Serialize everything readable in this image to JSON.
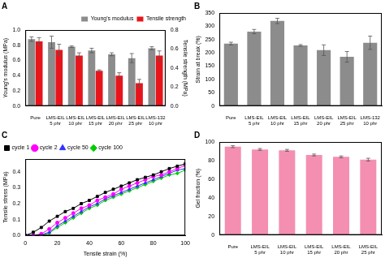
{
  "chart_data": [
    {
      "type": "bar",
      "title": "A",
      "categories": [
        "Pure",
        "LMS-EIL 5 phr",
        "LMS-EIL 10 phr",
        "LMS-EIL 15 phr",
        "LMS-EIL 20 phr",
        "LMS-EIL 25 phr",
        "LMS-132 10 phr"
      ],
      "series": [
        {
          "name": "Young's modulus",
          "color": "#8c8c8c",
          "values": [
            0.88,
            0.84,
            0.78,
            0.73,
            0.68,
            0.63,
            0.76
          ],
          "errors": [
            0.03,
            0.08,
            0.01,
            0.03,
            0.02,
            0.06,
            0.02
          ]
        },
        {
          "name": "Tensile strength",
          "color": "#e8141b",
          "axis": "y2",
          "values": [
            0.68,
            0.59,
            0.53,
            0.37,
            0.32,
            0.24,
            0.53
          ],
          "errors": [
            0.04,
            0.06,
            0.03,
            0.01,
            0.03,
            0.04,
            0.05
          ]
        }
      ],
      "y_label": "Young's modulus (MPa)",
      "y2_label": "Tensile strength (MPa)",
      "ylim": [
        0,
        1.0
      ],
      "yticks": [
        {
          "value": 0,
          "label": "0.0"
        },
        0.2,
        0.4,
        0.6,
        0.8,
        {
          "value": 1.0,
          "label": "1.0"
        }
      ],
      "y2lim": [
        0,
        0.8
      ],
      "y2ticks": [
        {
          "value": 0,
          "label": "0.0"
        },
        0.2,
        0.4,
        0.6,
        0.8
      ],
      "legend": "top right",
      "grid": false
    },
    {
      "type": "bar",
      "title": "B",
      "categories": [
        "Pure",
        "LMS-EIL 5 phr",
        "LMS-EIL 10 phr",
        "LMS-EIL 15 phr",
        "LMS-EIL 20 phr",
        "LMS-EIL 25 phr",
        "LMS-132 10 phr"
      ],
      "values": [
        235,
        280,
        320,
        228,
        210,
        185,
        238
      ],
      "errors": [
        5,
        8,
        10,
        3,
        20,
        20,
        25
      ],
      "color": "#8c8c8c",
      "y_label": "Strain at break (%)",
      "ylim": [
        0,
        350
      ],
      "yticks": [
        0,
        50,
        100,
        150,
        200,
        250,
        300,
        350
      ],
      "grid": false
    },
    {
      "type": "line",
      "title": "C",
      "x": [
        0,
        5,
        10,
        15,
        20,
        25,
        30,
        35,
        40,
        45,
        50,
        55,
        60,
        65,
        70,
        75,
        80,
        85,
        90,
        95,
        100
      ],
      "series": [
        {
          "name": "cycle 1",
          "color": "#000000",
          "marker": "square",
          "values": [
            0,
            0.02,
            0.05,
            0.09,
            0.12,
            0.15,
            0.17,
            0.2,
            0.22,
            0.245,
            0.27,
            0.29,
            0.31,
            0.33,
            0.35,
            0.365,
            0.38,
            0.4,
            0.42,
            0.435,
            0.45
          ]
        },
        {
          "name": "cycle 2",
          "color": "#ff00ff",
          "marker": "circle",
          "values": [
            0,
            0,
            0.01,
            0.04,
            0.08,
            0.11,
            0.14,
            0.17,
            0.19,
            0.22,
            0.24,
            0.26,
            0.29,
            0.31,
            0.33,
            0.35,
            0.37,
            0.38,
            0.4,
            0.42,
            0.44
          ]
        },
        {
          "name": "cycle 50",
          "color": "#3333ff",
          "marker": "triangle",
          "values": [
            0,
            0,
            0.005,
            0.02,
            0.06,
            0.09,
            0.12,
            0.15,
            0.18,
            0.2,
            0.23,
            0.25,
            0.27,
            0.29,
            0.31,
            0.33,
            0.35,
            0.37,
            0.39,
            0.41,
            0.42
          ]
        },
        {
          "name": "cycle 100",
          "color": "#00cc00",
          "marker": "diamond",
          "values": [
            0,
            0,
            0,
            0.015,
            0.05,
            0.08,
            0.11,
            0.14,
            0.17,
            0.19,
            0.22,
            0.24,
            0.26,
            0.28,
            0.3,
            0.32,
            0.34,
            0.36,
            0.38,
            0.39,
            0.41
          ]
        }
      ],
      "x_label": "Tensile strain (%)",
      "y_label": "Tensile stress (MPa)",
      "xlim": [
        0,
        100
      ],
      "xticks": [
        0,
        20,
        40,
        60,
        80,
        100
      ],
      "ylim": [
        0,
        0.48
      ],
      "yticks": [
        {
          "value": 0,
          "label": "0.0"
        },
        0.1,
        0.2,
        0.3,
        0.4
      ],
      "legend": "top left",
      "grid": false
    },
    {
      "type": "bar",
      "title": "D",
      "categories": [
        "Pure",
        "LMS-EIL 5 phr",
        "LMS-EIL 10 phr",
        "LMS-EIL 15 phr",
        "LMS-EIL 20 phr",
        "LMS-EIL 25 phr"
      ],
      "values": [
        95,
        92,
        91,
        86,
        84,
        81
      ],
      "errors": [
        1,
        1,
        1,
        1,
        1,
        1.5
      ],
      "color": "#f48fb1",
      "y_label": "Gel fraction (%)",
      "ylim": [
        0,
        100
      ],
      "yticks": [
        0,
        20,
        40,
        60,
        80,
        100
      ],
      "grid": false
    }
  ]
}
